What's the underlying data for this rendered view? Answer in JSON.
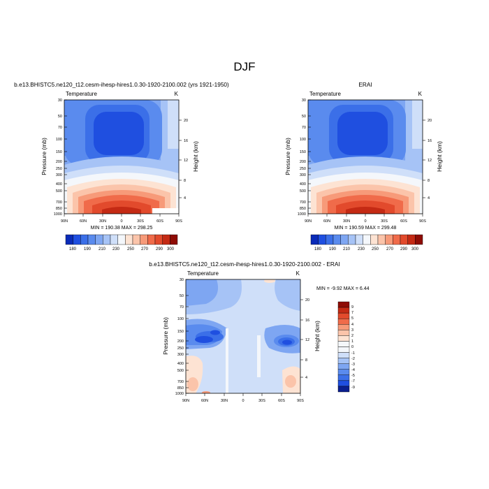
{
  "figure": {
    "title": "DJF"
  },
  "chart_data": [
    {
      "type": "heatmap",
      "title": "b.e13.BHISTC5.ne120_t12.cesm-ihesp-hires1.0.30-1920-2100.002 (yrs 1921-1950)",
      "left_label": "Temperature",
      "right_label": "K",
      "ylabel": "Pressure (mb)",
      "y2label": "Height (km)",
      "x_ticks": [
        "90N",
        "60N",
        "30N",
        "0",
        "30S",
        "60S",
        "90S"
      ],
      "y_ticks": [
        "30",
        "50",
        "70",
        "100",
        "150",
        "200",
        "250",
        "300",
        "400",
        "500",
        "700",
        "850",
        "1000"
      ],
      "y2_ticks": [
        "20",
        "16",
        "12",
        "8",
        "4"
      ],
      "stats": "MIN = 190.38   MAX = 298.25",
      "colorbar": {
        "orientation": "horizontal",
        "labels": [
          "180",
          "190",
          "210",
          "230",
          "250",
          "270",
          "290",
          "300"
        ],
        "colors": [
          "#0a2bb8",
          "#1f4fe0",
          "#3b6fe8",
          "#5a8bee",
          "#7ea6f2",
          "#a6c3f6",
          "#cfdff9",
          "#f4f7fb",
          "#fde3d3",
          "#fbc4aa",
          "#f79a79",
          "#f06b4a",
          "#e24a2c",
          "#c42a14",
          "#8e0c05"
        ]
      }
    },
    {
      "type": "heatmap",
      "title": "ERAI",
      "left_label": "Temperature",
      "right_label": "K",
      "ylabel": "Pressure (mb)",
      "y2label": "Height (km)",
      "x_ticks": [
        "90N",
        "60N",
        "30N",
        "0",
        "30S",
        "60S",
        "90S"
      ],
      "y_ticks": [
        "30",
        "50",
        "70",
        "100",
        "150",
        "200",
        "250",
        "300",
        "400",
        "500",
        "700",
        "850",
        "1000"
      ],
      "y2_ticks": [
        "20",
        "16",
        "12",
        "8",
        "4"
      ],
      "stats": "MIN = 190.59   MAX = 299.48",
      "colorbar": {
        "orientation": "horizontal",
        "labels": [
          "180",
          "190",
          "210",
          "230",
          "250",
          "270",
          "290",
          "300"
        ],
        "colors": [
          "#0a2bb8",
          "#1f4fe0",
          "#3b6fe8",
          "#5a8bee",
          "#7ea6f2",
          "#a6c3f6",
          "#cfdff9",
          "#f4f7fb",
          "#fde3d3",
          "#fbc4aa",
          "#f79a79",
          "#f06b4a",
          "#e24a2c",
          "#c42a14",
          "#8e0c05"
        ]
      }
    },
    {
      "type": "heatmap",
      "title": "b.e13.BHISTC5.ne120_t12.cesm-ihesp-hires1.0.30-1920-2100.002 - ERAI",
      "left_label": "Temperature",
      "right_label": "K",
      "ylabel": "Pressure (mb)",
      "y2label": "Height (km)",
      "x_ticks": [
        "90N",
        "60N",
        "30N",
        "0",
        "30S",
        "60S",
        "90S"
      ],
      "y_ticks": [
        "30",
        "50",
        "70",
        "100",
        "150",
        "200",
        "250",
        "300",
        "400",
        "500",
        "700",
        "850",
        "1000"
      ],
      "y2_ticks": [
        "20",
        "16",
        "12",
        "8",
        "4"
      ],
      "stats": "MIN =  -9.92   MAX =   6.44",
      "colorbar": {
        "orientation": "vertical",
        "labels": [
          "9",
          "7",
          "5",
          "4",
          "3",
          "2",
          "1",
          "0",
          "-1",
          "-2",
          "-3",
          "-4",
          "-5",
          "-7",
          "-9"
        ],
        "colors": [
          "#8e0c05",
          "#c42a14",
          "#e24a2c",
          "#f06b4a",
          "#f79a79",
          "#fbc4aa",
          "#fde3d3",
          "#f4f7fb",
          "#f4f7fb",
          "#cfdff9",
          "#a6c3f6",
          "#7ea6f2",
          "#5a8bee",
          "#3b6fe8",
          "#1f4fe0",
          "#0a1f8f"
        ]
      }
    }
  ]
}
